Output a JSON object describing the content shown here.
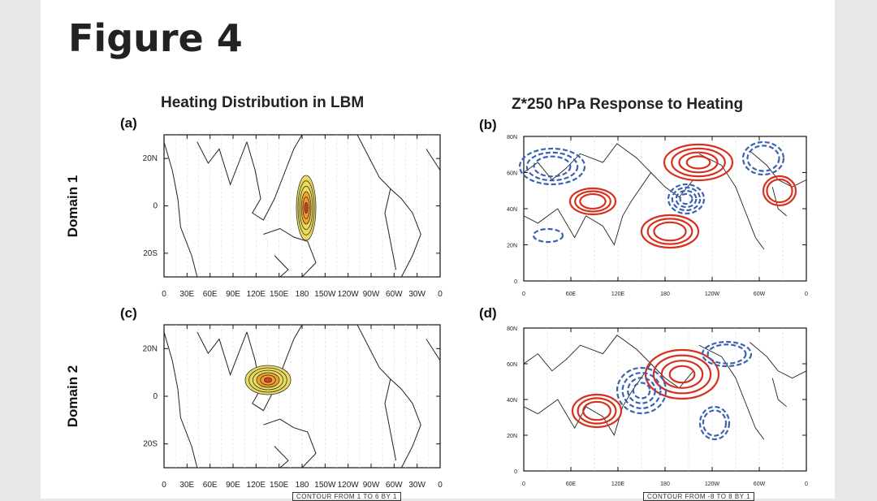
{
  "figure_title": "Figure 4",
  "columns": {
    "left_title": "Heating Distribution in LBM",
    "right_title": "Z*250 hPa Response to Heating"
  },
  "rows": {
    "row1": "Domain 1",
    "row2": "Domain 2"
  },
  "panels": {
    "a": {
      "label": "(a)",
      "y_ticks": [
        "20N",
        "0",
        "20S"
      ],
      "x_ticks": [
        "0",
        "30E",
        "60E",
        "90E",
        "120E",
        "150E",
        "180",
        "150W",
        "120W",
        "90W",
        "60W",
        "30W",
        "0"
      ]
    },
    "b": {
      "label": "(b)",
      "y_ticks": [
        "80N",
        "60N",
        "40N",
        "20N",
        "0"
      ],
      "x_ticks": [
        "0",
        "60E",
        "120E",
        "180",
        "120W",
        "60W",
        "0"
      ]
    },
    "c": {
      "label": "(c)",
      "y_ticks": [
        "20N",
        "0",
        "20S"
      ],
      "x_ticks": [
        "0",
        "30E",
        "60E",
        "90E",
        "120E",
        "150E",
        "180",
        "150W",
        "120W",
        "90W",
        "60W",
        "30W",
        "0"
      ],
      "footnote": "CONTOUR FROM 1 TO 6 BY 1"
    },
    "d": {
      "label": "(d)",
      "y_ticks": [
        "80N",
        "60N",
        "40N",
        "20N",
        "0"
      ],
      "x_ticks": [
        "0",
        "60E",
        "120E",
        "180",
        "120W",
        "60W",
        "0"
      ],
      "footnote": "CONTOUR FROM -8 TO 8 BY 1"
    }
  },
  "colors": {
    "positive": "#d7301f",
    "negative": "#3a62b3",
    "heat_core": "#e03a1e",
    "heat_mid": "#f2a02a",
    "heat_outer": "#eadc5a"
  }
}
